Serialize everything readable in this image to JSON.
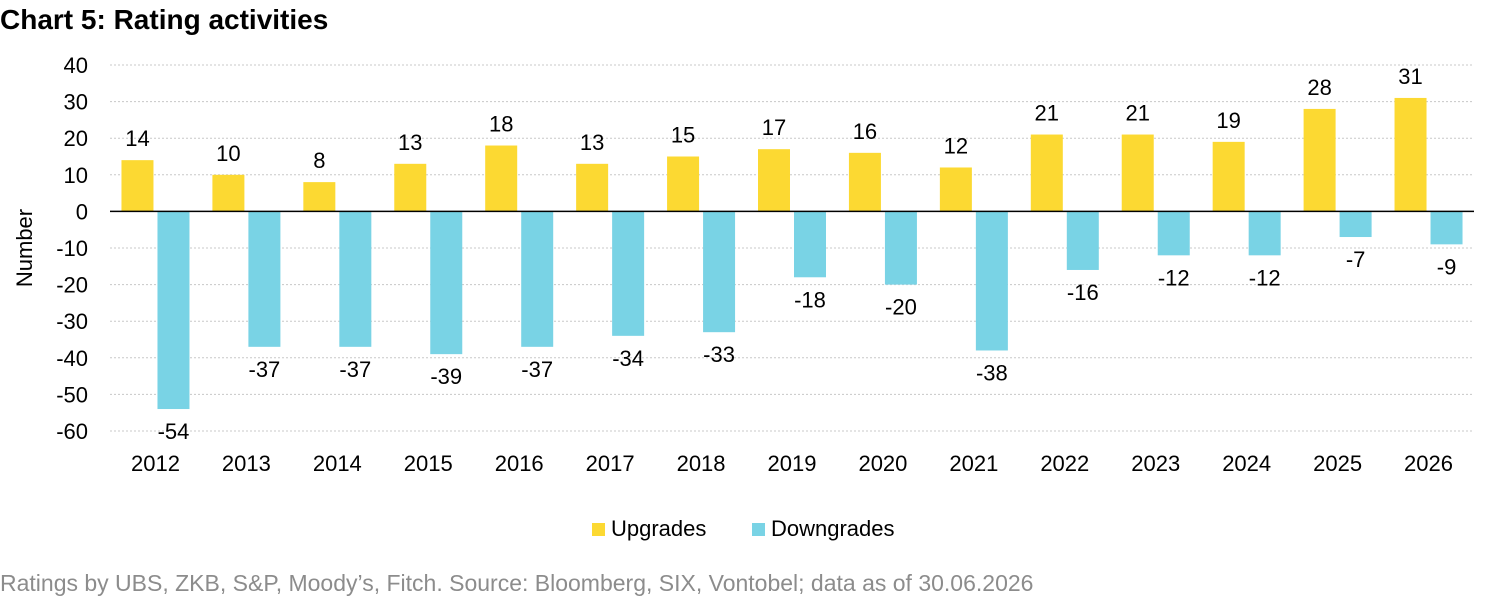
{
  "title": "Chart 5: Rating activities",
  "source": "Ratings by UBS, ZKB, S&P, Moody’s, Fitch. Source: Bloomberg, SIX, Vontobel; data as of 30.06.2026",
  "chart_data": {
    "type": "bar",
    "categories": [
      "2012",
      "2013",
      "2014",
      "2015",
      "2016",
      "2017",
      "2018",
      "2019",
      "2020",
      "2021",
      "2022",
      "2023",
      "2024",
      "2025",
      "2026"
    ],
    "series": [
      {
        "name": "Upgrades",
        "color": "#fcd932",
        "values": [
          14,
          10,
          8,
          13,
          18,
          13,
          15,
          17,
          16,
          12,
          21,
          21,
          19,
          28,
          31
        ]
      },
      {
        "name": "Downgrades",
        "color": "#79d3e5",
        "values": [
          -54,
          -37,
          -37,
          -39,
          -37,
          -34,
          -33,
          -18,
          -20,
          -38,
          -16,
          -12,
          -12,
          -7,
          -9
        ]
      }
    ],
    "ylabel": "Number",
    "xlabel": "",
    "ylim": [
      -60,
      40
    ],
    "yticks": [
      40,
      30,
      20,
      10,
      0,
      -10,
      -20,
      -30,
      -40,
      -50,
      -60
    ],
    "grid": true,
    "legend": "bottom-center"
  }
}
